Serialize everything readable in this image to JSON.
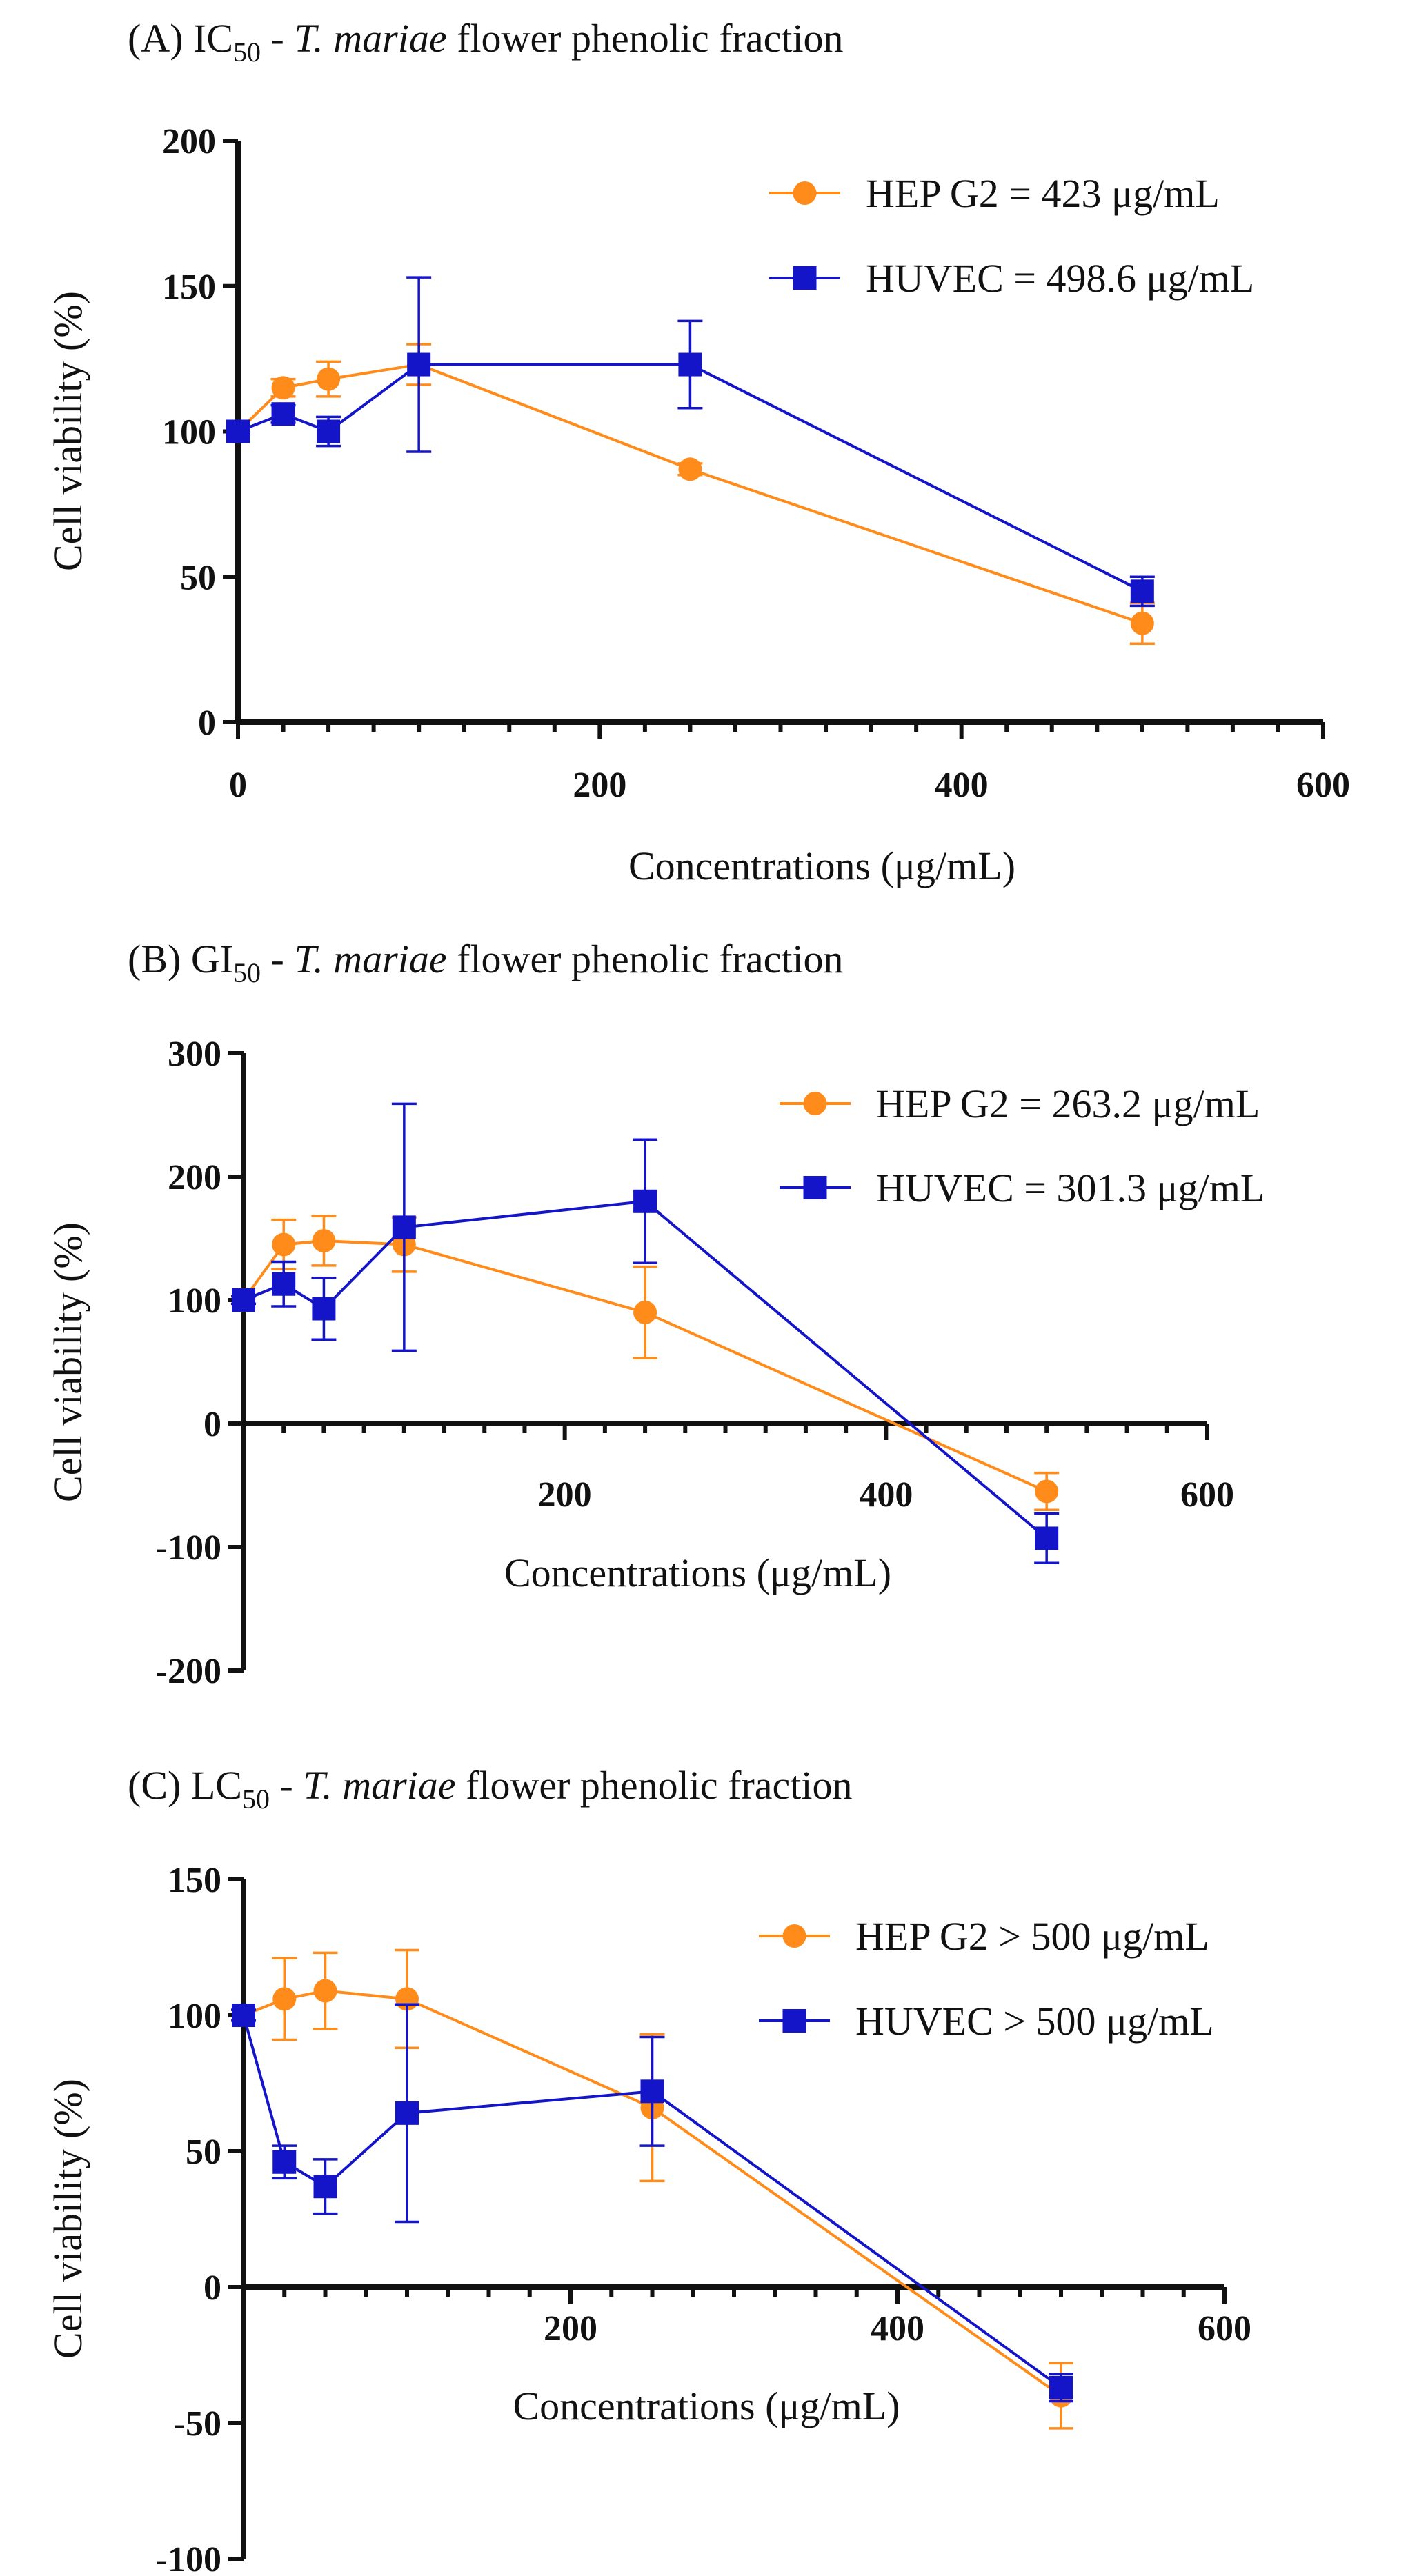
{
  "colors": {
    "hep": "#FF8C1A",
    "huvec": "#1414C8",
    "axis": "#111111"
  },
  "chart_data": [
    {
      "type": "line",
      "title": {
        "prefix": "(A) IC",
        "sub": "50",
        "sep": " - ",
        "italic": "T. mariae",
        "suffix": " flower phenolic fraction"
      },
      "xlabel": "Concentrations (μg/mL)",
      "ylabel": "Cell viability (%)",
      "xlim": [
        0,
        600
      ],
      "ylim": [
        0,
        200
      ],
      "xticks": [
        0,
        200,
        400,
        600
      ],
      "yticks": [
        0,
        50,
        100,
        150,
        200
      ],
      "minor_xticks": [
        25,
        50,
        75,
        100,
        125,
        150,
        175,
        225,
        250,
        275,
        300,
        325,
        350,
        375,
        425,
        450,
        475,
        500,
        525,
        550,
        575
      ],
      "series": [
        {
          "name": "HEP G2 = 423 μg/mL",
          "marker": "circle",
          "x": [
            0,
            25,
            50,
            100,
            250,
            500
          ],
          "y": [
            100,
            115,
            118,
            123,
            87,
            34
          ],
          "err": [
            1,
            3,
            6,
            7,
            2,
            7
          ]
        },
        {
          "name": "HUVEC = 498.6 μg/mL",
          "marker": "square",
          "x": [
            0,
            25,
            50,
            100,
            250,
            500
          ],
          "y": [
            100,
            106,
            100,
            123,
            123,
            45
          ],
          "err": [
            1,
            3,
            5,
            30,
            15,
            5
          ]
        }
      ]
    },
    {
      "type": "line",
      "title": {
        "prefix": "(B) GI",
        "sub": "50",
        "sep": " -  ",
        "italic": "T. mariae",
        "suffix": " flower phenolic fraction"
      },
      "xlabel": "Concentrations (μg/mL)",
      "ylabel": "Cell viability (%)",
      "xlim": [
        0,
        600
      ],
      "ylim": [
        -200,
        300
      ],
      "xticks": [
        200,
        400,
        600
      ],
      "yticks": [
        -200,
        -100,
        0,
        100,
        200,
        300
      ],
      "minor_xticks": [
        25,
        50,
        75,
        100,
        125,
        150,
        175,
        225,
        250,
        275,
        300,
        325,
        350,
        375,
        425,
        450,
        475,
        500,
        525,
        550,
        575
      ],
      "series": [
        {
          "name": "HEP G2 = 263.2 μg/mL",
          "marker": "circle",
          "x": [
            0,
            25,
            50,
            100,
            250,
            500
          ],
          "y": [
            100,
            145,
            148,
            145,
            90,
            -55
          ],
          "err": [
            3,
            20,
            20,
            22,
            37,
            15
          ]
        },
        {
          "name": "HUVEC = 301.3 μg/mL",
          "marker": "square",
          "x": [
            0,
            25,
            50,
            100,
            250,
            500
          ],
          "y": [
            100,
            113,
            93,
            159,
            180,
            -93
          ],
          "err": [
            3,
            18,
            25,
            100,
            50,
            20
          ]
        }
      ]
    },
    {
      "type": "line",
      "title": {
        "prefix": "(C)  LC",
        "sub": "50",
        "sep": " - ",
        "italic": "T. mariae",
        "suffix": " flower phenolic fraction"
      },
      "xlabel": "Concentrations (μg/mL)",
      "ylabel": "Cell viability (%)",
      "xlim": [
        0,
        600
      ],
      "ylim": [
        -100,
        150
      ],
      "xticks": [
        200,
        400,
        600
      ],
      "yticks": [
        -100,
        -50,
        0,
        50,
        100,
        150
      ],
      "minor_xticks": [
        25,
        50,
        75,
        100,
        125,
        150,
        175,
        225,
        250,
        275,
        300,
        325,
        350,
        375,
        425,
        450,
        475,
        500,
        525,
        550,
        575
      ],
      "series": [
        {
          "name": "HEP G2 > 500 μg/mL",
          "marker": "circle",
          "x": [
            0,
            25,
            50,
            100,
            250,
            500
          ],
          "y": [
            100,
            106,
            109,
            106,
            66,
            -40
          ],
          "err": [
            2,
            15,
            14,
            18,
            27,
            12
          ]
        },
        {
          "name": "HUVEC > 500 μg/mL",
          "marker": "square",
          "x": [
            0,
            25,
            50,
            100,
            250,
            500
          ],
          "y": [
            100,
            46,
            37,
            64,
            72,
            -37
          ],
          "err": [
            2,
            6,
            10,
            40,
            20,
            5
          ]
        }
      ]
    }
  ]
}
